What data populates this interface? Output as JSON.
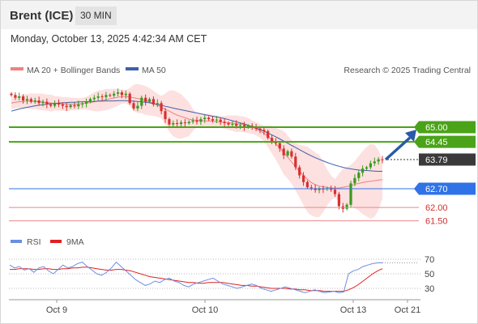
{
  "header": {
    "title": "Brent (ICE)",
    "timeframe": "30 MIN"
  },
  "datetime": "Monday, October 13, 2025 4:42:34 AM CET",
  "legend": {
    "ma20": "MA 20 + Bollinger Bands",
    "ma50": "MA 50",
    "credit": "Research © 2025 Trading Central",
    "rsi": "RSI",
    "ma9": "9MA"
  },
  "colors": {
    "up": "#3a9a1f",
    "down": "#d83030",
    "bb_fill": "#fde0e0",
    "ma20": "#f08080",
    "ma50": "#3f5fa8",
    "resistance": "#4aa318",
    "pivot": "#2f73e6",
    "support": "#e88a8a",
    "last": "#3a3a3a",
    "arrow": "#2a5aa8",
    "rsi_line": "#6a8fe0",
    "rsi_ma": "#e02020"
  },
  "chart_data": [
    {
      "type": "candlestick",
      "title": "Brent (ICE)",
      "timeframe": "30 MIN",
      "x_ticks": [
        "Oct 9",
        "Oct 10",
        "Oct 13",
        "Oct 21"
      ],
      "ylim": [
        61.2,
        65.6
      ],
      "last_price": 63.79,
      "levels": [
        {
          "value": 65.0,
          "label": "65.00",
          "kind": "resistance"
        },
        {
          "value": 64.45,
          "label": "64.45",
          "kind": "resistance"
        },
        {
          "value": 63.79,
          "label": "63.79",
          "kind": "last"
        },
        {
          "value": 62.7,
          "label": "62.70",
          "kind": "pivot"
        },
        {
          "value": 62.0,
          "label": "62.00",
          "kind": "support"
        },
        {
          "value": 61.5,
          "label": "61.50",
          "kind": "support"
        }
      ],
      "series": [
        {
          "name": "MA 20 + Bollinger Bands"
        },
        {
          "name": "MA 50"
        }
      ],
      "close": [
        66.2,
        66.1,
        66.15,
        66.0,
        66.05,
        65.95,
        66.0,
        65.9,
        65.95,
        65.85,
        65.8,
        65.9,
        65.85,
        65.8,
        65.75,
        65.82,
        65.78,
        65.85,
        65.88,
        65.95,
        66.05,
        66.1,
        66.15,
        66.12,
        66.2,
        66.18,
        66.25,
        66.3,
        66.2,
        66.25,
        65.9,
        65.7,
        65.8,
        66.1,
        65.95,
        66.05,
        65.85,
        65.9,
        65.6,
        65.3,
        65.1,
        65.15,
        65.12,
        65.18,
        65.15,
        65.2,
        65.25,
        65.2,
        65.3,
        65.35,
        65.3,
        65.25,
        65.28,
        65.2,
        65.15,
        65.1,
        65.12,
        65.05,
        65.08,
        65.0,
        65.05,
        64.98,
        64.95,
        64.9,
        64.85,
        64.6,
        64.45,
        64.4,
        64.2,
        63.95,
        64.1,
        63.9,
        63.5,
        63.2,
        62.95,
        62.75,
        62.72,
        62.65,
        62.7,
        62.68,
        62.72,
        62.66,
        62.5,
        62.05,
        61.95,
        62.1,
        62.9,
        63.1,
        63.3,
        63.45,
        63.5,
        63.65,
        63.72,
        63.8,
        63.79
      ],
      "ma20": [
        65.9,
        65.93,
        65.95,
        65.96,
        65.97,
        65.97,
        65.96,
        65.95,
        65.94,
        65.92,
        65.9,
        65.89,
        65.88,
        65.87,
        65.86,
        65.86,
        65.86,
        65.87,
        65.88,
        65.9,
        65.92,
        65.95,
        65.98,
        66.0,
        66.03,
        66.06,
        66.09,
        66.12,
        66.14,
        66.14,
        66.13,
        66.1,
        66.07,
        66.05,
        66.0,
        65.95,
        65.89,
        65.82,
        65.75,
        65.67,
        65.6,
        65.52,
        65.45,
        65.4,
        65.35,
        65.3,
        65.27,
        65.26,
        65.25,
        65.24,
        65.23,
        65.22,
        65.2,
        65.19,
        65.18,
        65.17,
        65.15,
        65.13,
        65.12,
        65.1,
        65.06,
        65.0,
        64.94,
        64.86,
        64.77,
        64.66,
        64.53,
        64.38,
        64.22,
        64.05,
        63.88,
        63.7,
        63.52,
        63.35,
        63.2,
        63.05,
        62.93,
        62.85,
        62.8,
        62.77,
        62.75,
        62.73,
        62.72,
        62.73,
        62.75,
        62.78,
        62.82,
        62.86,
        62.9,
        62.93,
        62.96,
        62.98,
        63.0,
        63.02,
        63.04
      ],
      "ma50": [
        65.6,
        65.64,
        65.68,
        65.71,
        65.74,
        65.77,
        65.8,
        65.82,
        65.84,
        65.86,
        65.88,
        65.89,
        65.9,
        65.91,
        65.92,
        65.93,
        65.93,
        65.94,
        65.95,
        65.95,
        65.96,
        65.96,
        65.97,
        65.97,
        65.98,
        65.98,
        65.98,
        65.99,
        65.99,
        65.99,
        65.98,
        65.97,
        65.96,
        65.95,
        65.93,
        65.91,
        65.88,
        65.85,
        65.82,
        65.78,
        65.75,
        65.71,
        65.68,
        65.65,
        65.62,
        65.59,
        65.56,
        65.53,
        65.5,
        65.47,
        65.44,
        65.41,
        65.38,
        65.35,
        65.32,
        65.28,
        65.24,
        65.2,
        65.16,
        65.12,
        65.07,
        65.02,
        64.97,
        64.91,
        64.85,
        64.78,
        64.71,
        64.64,
        64.56,
        64.48,
        64.4,
        64.32,
        64.24,
        64.16,
        64.08,
        64.0,
        63.93,
        63.86,
        63.8,
        63.74,
        63.68,
        63.63,
        63.58,
        63.54,
        63.5,
        63.47,
        63.44,
        63.42,
        63.4,
        63.39,
        63.38,
        63.37,
        63.36,
        63.35,
        63.35
      ]
    },
    {
      "type": "line",
      "name": "RSI",
      "yticks": [
        30,
        50,
        70
      ],
      "ylim": [
        20,
        80
      ],
      "series": [
        {
          "name": "RSI",
          "values": [
            62,
            58,
            60,
            55,
            57,
            52,
            58,
            60,
            54,
            50,
            56,
            62,
            58,
            60,
            64,
            66,
            60,
            55,
            50,
            48,
            52,
            58,
            66,
            60,
            54,
            48,
            42,
            38,
            34,
            36,
            40,
            38,
            42,
            44,
            40,
            38,
            34,
            32,
            36,
            38,
            40,
            42,
            44,
            40,
            36,
            34,
            32,
            30,
            32,
            34,
            36,
            34,
            30,
            28,
            26,
            28,
            30,
            32,
            30,
            28,
            26,
            24,
            26,
            28,
            26,
            24,
            25,
            26,
            24,
            25,
            50,
            54,
            56,
            60,
            62,
            64,
            65,
            65
          ]
        },
        {
          "name": "9MA",
          "values": [
            56,
            56,
            57,
            57,
            57,
            56,
            56,
            57,
            57,
            56,
            56,
            57,
            57,
            58,
            58,
            59,
            59,
            58,
            57,
            56,
            55,
            55,
            56,
            56,
            55,
            54,
            52,
            50,
            48,
            46,
            45,
            44,
            43,
            42,
            41,
            40,
            39,
            38,
            38,
            37,
            37,
            38,
            38,
            38,
            38,
            37,
            36,
            35,
            34,
            34,
            33,
            33,
            32,
            31,
            30,
            30,
            30,
            30,
            29,
            29,
            28,
            28,
            27,
            27,
            27,
            26,
            26,
            26,
            26,
            26,
            28,
            31,
            35,
            40,
            45,
            50,
            54,
            57
          ]
        }
      ]
    }
  ]
}
